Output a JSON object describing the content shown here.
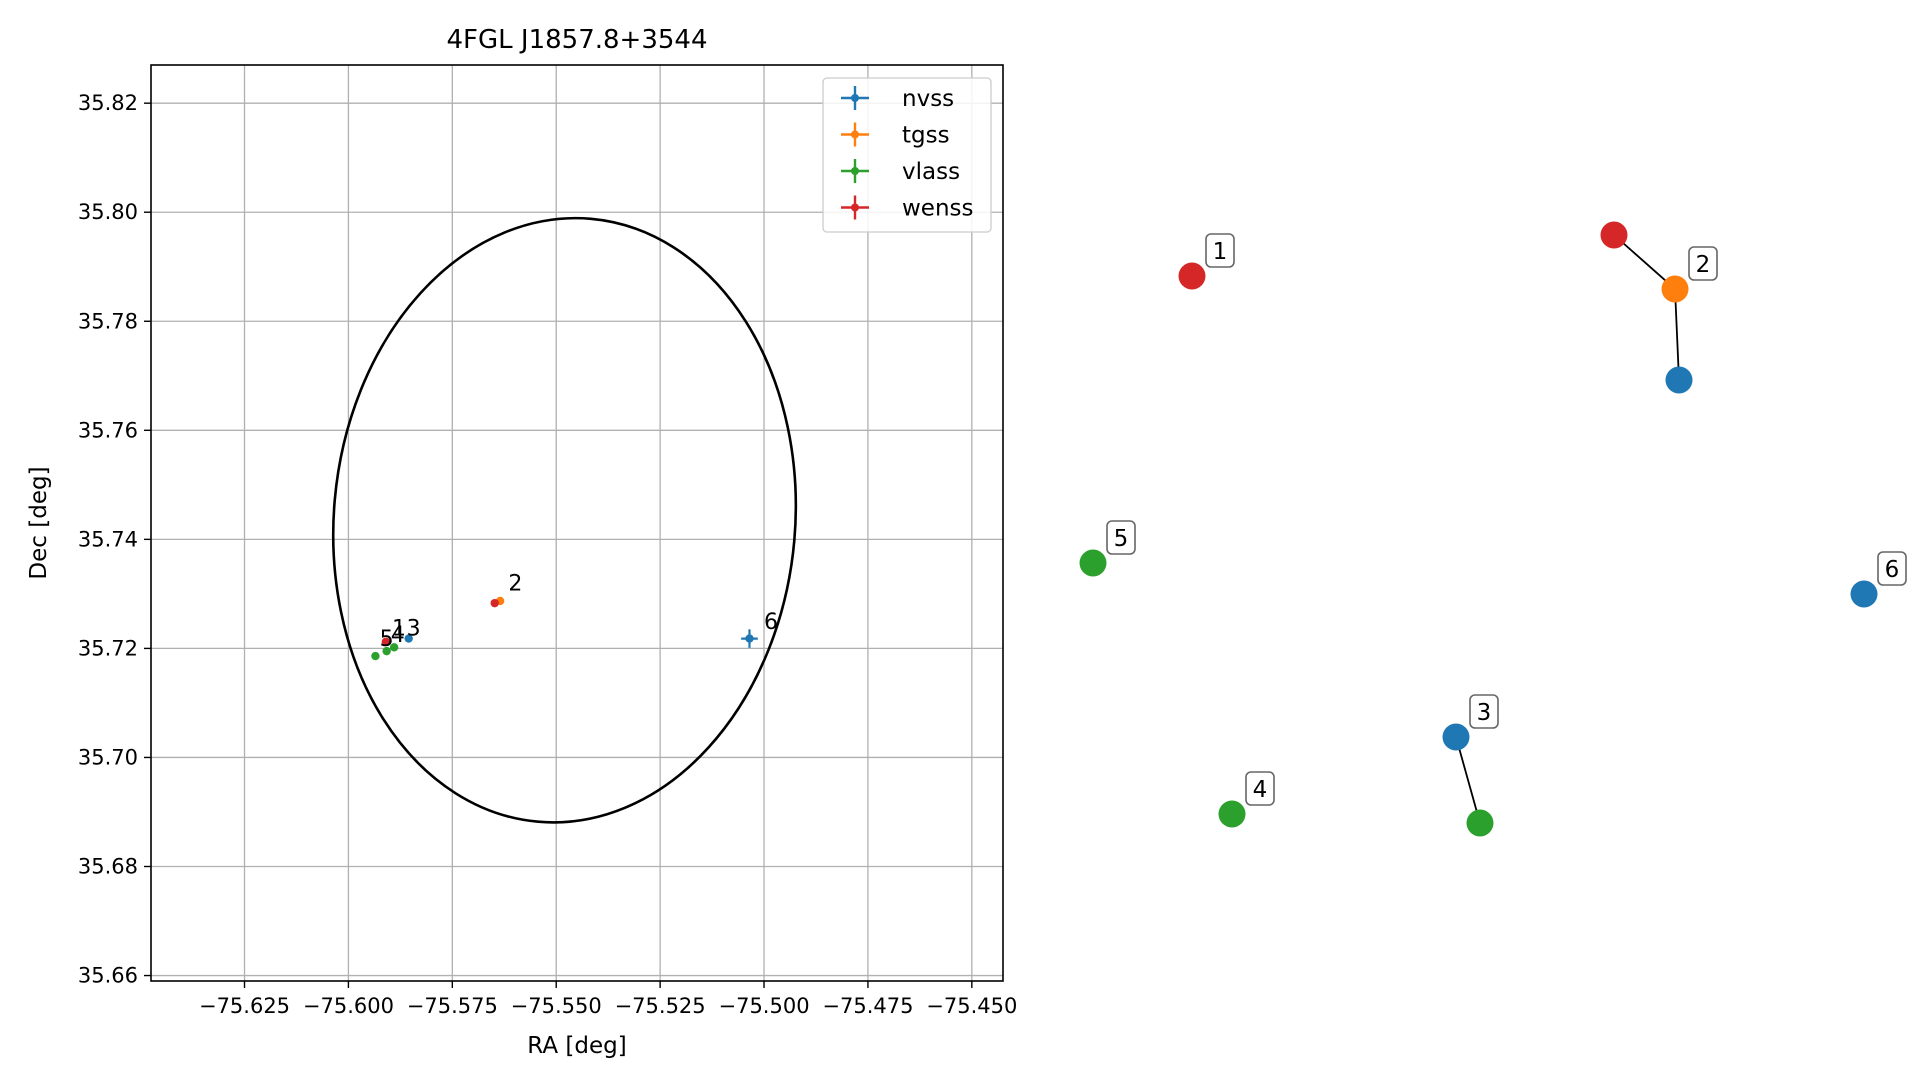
{
  "chart_data": [
    {
      "type": "scatter",
      "title": "4FGL J1857.8+3544",
      "xlabel": "RA [deg]",
      "ylabel": "Dec [deg]",
      "xlim": [
        -75.6475,
        -75.4425
      ],
      "ylim": [
        35.659,
        35.827
      ],
      "x_ticks": [
        -75.625,
        -75.6,
        -75.575,
        -75.55,
        -75.525,
        -75.5,
        -75.475,
        -75.45
      ],
      "x_tick_labels": [
        "−75.625",
        "−75.600",
        "−75.575",
        "−75.550",
        "−75.525",
        "−75.500",
        "−75.475",
        "−75.450"
      ],
      "y_ticks": [
        35.66,
        35.68,
        35.7,
        35.72,
        35.74,
        35.76,
        35.78,
        35.8,
        35.82
      ],
      "y_tick_labels": [
        "35.66",
        "35.68",
        "35.70",
        "35.72",
        "35.74",
        "35.76",
        "35.78",
        "35.80",
        "35.82"
      ],
      "grid": true,
      "legend_position": "top-right",
      "ellipse": {
        "center": [
          -75.548,
          35.7435
        ],
        "semi_axis_ra": 0.0555,
        "semi_axis_dec": 0.0555,
        "rotation_deg": 5
      },
      "series": [
        {
          "name": "nvss",
          "color": "#1f77b4",
          "points": [
            {
              "x": -75.5855,
              "y": 35.7218
            },
            {
              "x": -75.5035,
              "y": 35.7218,
              "xerr": 0.002,
              "yerr": 0.0017
            }
          ]
        },
        {
          "name": "tgss",
          "color": "#ff7f0e",
          "points": [
            {
              "x": -75.5635,
              "y": 35.7287
            }
          ]
        },
        {
          "name": "vlass",
          "color": "#2ca02c",
          "points": [
            {
              "x": -75.5935,
              "y": 35.7186
            },
            {
              "x": -75.5908,
              "y": 35.7195
            },
            {
              "x": -75.589,
              "y": 35.7202
            }
          ]
        },
        {
          "name": "wenss",
          "color": "#d62728",
          "points": [
            {
              "x": -75.591,
              "y": 35.7212
            },
            {
              "x": -75.5648,
              "y": 35.7283
            }
          ]
        }
      ],
      "annotations": [
        {
          "text": "1",
          "x": -75.5895,
          "y": 35.7224
        },
        {
          "text": "3",
          "x": -75.586,
          "y": 35.7224
        },
        {
          "text": "5",
          "x": -75.5925,
          "y": 35.7204
        },
        {
          "text": "4",
          "x": -75.5898,
          "y": 35.7212
        },
        {
          "text": "2",
          "x": -75.5615,
          "y": 35.7306
        },
        {
          "text": "6",
          "x": -75.5,
          "y": 35.7236
        }
      ]
    }
  ],
  "graph": {
    "nodes": [
      {
        "label": "1",
        "color": "#d62728"
      },
      {
        "label": "2",
        "color": "#ff7f0e"
      },
      {
        "label": "",
        "color": "#d62728"
      },
      {
        "label": "",
        "color": "#1f77b4"
      },
      {
        "label": "5",
        "color": "#2ca02c"
      },
      {
        "label": "6",
        "color": "#1f77b4"
      },
      {
        "label": "3",
        "color": "#1f77b4"
      },
      {
        "label": "",
        "color": "#2ca02c"
      },
      {
        "label": "4",
        "color": "#2ca02c"
      }
    ],
    "edges": [
      [
        2,
        1
      ],
      [
        1,
        3
      ],
      [
        6,
        7
      ]
    ]
  }
}
